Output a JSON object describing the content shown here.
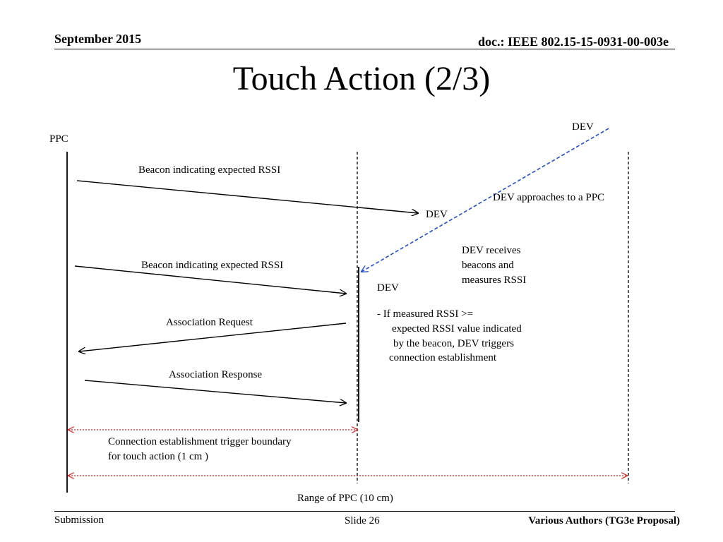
{
  "header": {
    "date": "September 2015",
    "doc": "doc.: IEEE 802.15-15-0931-00-003e"
  },
  "title": "Touch Action (2/3)",
  "diagram": {
    "ppc_label": "PPC",
    "dev_top_label": "DEV",
    "dev_mid_label": "DEV",
    "dev_near_label": "DEV",
    "approach_label": "DEV approaches to a PPC",
    "messages": [
      "Beacon indicating expected RSSI",
      "Beacon indicating expected RSSI",
      "Association Request",
      "Association Response"
    ],
    "receives_note": [
      "DEV receives",
      "beacons and",
      "measures RSSI"
    ],
    "condition_note": [
      "-   If measured RSSI >=",
      "expected RSSI value indicated",
      "by the beacon,  DEV triggers",
      "connection establishment"
    ],
    "boundary_label": [
      "Connection establishment trigger boundary",
      "for touch action (1 cm )"
    ],
    "range_label": "Range of  PPC (10 cm)",
    "colors": {
      "approach_arrow": "#1f4fd0",
      "range_arrow": "#e02020"
    }
  },
  "footer": {
    "left": "Submission",
    "center": "Slide 26",
    "right": "Various Authors (TG3e Proposal)"
  }
}
